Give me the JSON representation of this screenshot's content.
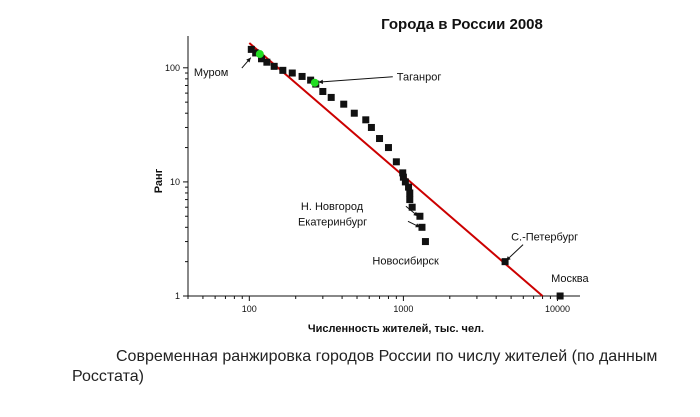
{
  "chart_data": {
    "type": "scatter",
    "title": "Города в России 2008",
    "xlabel": "Численность жителей, тыс. чел.",
    "ylabel": "Ранг",
    "x_scale": "log",
    "y_scale": "log",
    "xlim": [
      40,
      14000
    ],
    "ylim": [
      1,
      190
    ],
    "x_ticks": [
      {
        "value": 100,
        "label": "100"
      },
      {
        "value": 1000,
        "label": "1000"
      },
      {
        "value": 10000,
        "label": "10000"
      }
    ],
    "y_ticks": [
      {
        "value": 1,
        "label": "1"
      },
      {
        "value": 10,
        "label": "10"
      },
      {
        "value": 100,
        "label": "100"
      }
    ],
    "grid": false,
    "colors": {
      "markers": "#111111",
      "fit_line": "#cc0000",
      "highlight": "#22dd22"
    },
    "series": [
      {
        "marker": "square",
        "points": [
          [
            10400,
            1
          ],
          [
            4570,
            2
          ],
          [
            1390,
            3
          ],
          [
            1320,
            4
          ],
          [
            1280,
            5
          ],
          [
            1140,
            6
          ],
          [
            1100,
            7
          ],
          [
            1100,
            8
          ],
          [
            1080,
            9
          ],
          [
            1030,
            10
          ],
          [
            1000,
            11
          ],
          [
            990,
            12
          ],
          [
            900,
            15
          ],
          [
            800,
            20
          ],
          [
            700,
            24
          ],
          [
            620,
            30
          ],
          [
            570,
            35
          ],
          [
            480,
            40
          ],
          [
            410,
            48
          ],
          [
            340,
            55
          ],
          [
            300,
            62
          ],
          [
            270,
            72
          ],
          [
            250,
            78
          ],
          [
            220,
            84
          ],
          [
            190,
            90
          ],
          [
            165,
            95
          ],
          [
            145,
            103
          ],
          [
            130,
            112
          ],
          [
            120,
            120
          ],
          [
            110,
            135
          ],
          [
            103,
            145
          ]
        ]
      },
      {
        "marker": "circle",
        "points": [
          [
            117,
            132
          ],
          [
            266,
            74
          ]
        ]
      }
    ],
    "fit_line": {
      "from": [
        100,
        165
      ],
      "to": [
        8000,
        1
      ]
    },
    "annotations": [
      {
        "text": "Муром",
        "x": 117,
        "y": 132
      },
      {
        "text": "Таганрог",
        "x": 266,
        "y": 74
      },
      {
        "text": "Н. Новгород",
        "x": 1280,
        "y": 5
      },
      {
        "text": "Екатеринбург",
        "x": 1320,
        "y": 4
      },
      {
        "text": "Новосибирск",
        "x": 1390,
        "y": 3
      },
      {
        "text": "С.-Петербург",
        "x": 4570,
        "y": 2
      },
      {
        "text": "Москва",
        "x": 10400,
        "y": 1
      }
    ]
  },
  "caption": "Современная ранжировка городов России по числу жителей (по данным Росстата)"
}
